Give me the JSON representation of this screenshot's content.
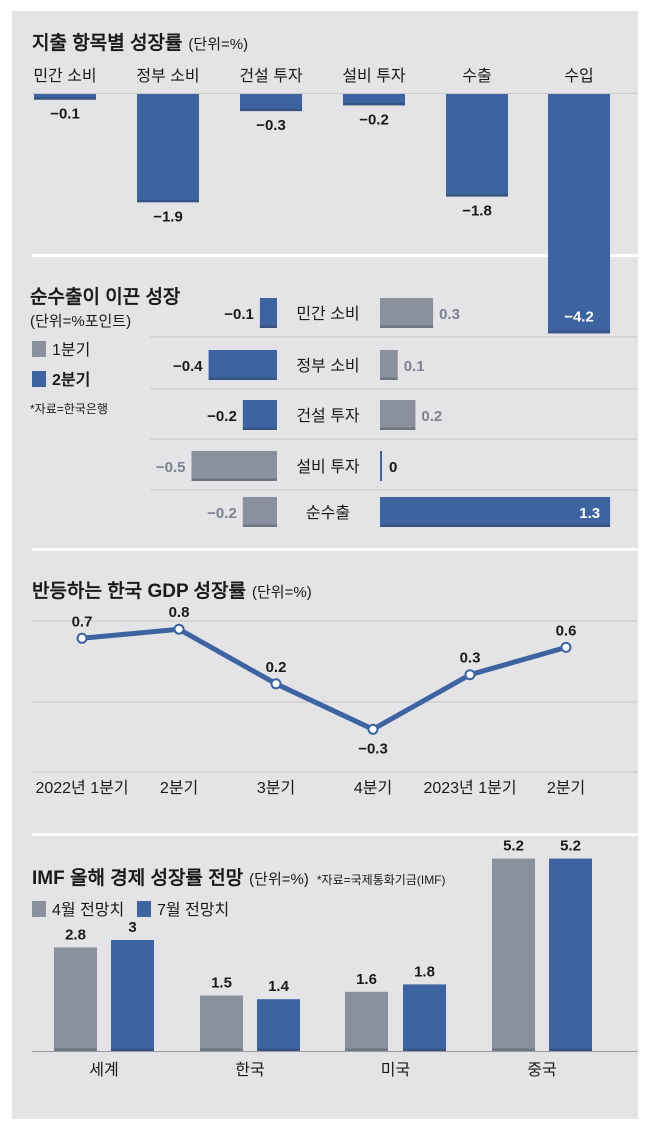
{
  "colors": {
    "blue": "#3e63a1",
    "gray": "#8a909d",
    "panel": "#e4e4e6",
    "divider": "#ffffff",
    "line": "#3e63a1"
  },
  "panel1": {
    "title": "지출 항목별 성장률",
    "unit": "(단위=%)"
  },
  "panel2": {
    "title": "순수출이 이끈 성장",
    "unit": "(단위=%포인트)",
    "legend_q1": "1분기",
    "legend_q2": "2분기",
    "source": "*자료=한국은행"
  },
  "panel3": {
    "title": "반등하는 한국 GDP 성장률",
    "unit": "(단위=%)"
  },
  "panel4": {
    "title": "IMF 올해 경제 성장률 전망",
    "unit": "(단위=%)",
    "source": "*자료=국제통화기금(IMF)",
    "legend_april": "4월 전망치",
    "legend_july": "7월 전망치"
  },
  "chart_data": [
    {
      "type": "bar",
      "title": "지출 항목별 성장률",
      "categories": [
        "민간 소비",
        "정부 소비",
        "건설 투자",
        "설비 투자",
        "수출",
        "수입"
      ],
      "values": [
        -0.1,
        -1.9,
        -0.3,
        -0.2,
        -1.8,
        -4.2
      ],
      "value_labels": [
        "−0.1",
        "−1.9",
        "−0.3",
        "−0.2",
        "−1.8",
        "−4.2"
      ]
    },
    {
      "type": "bar",
      "title": "순수출이 이끈 성장",
      "categories": [
        "민간 소비",
        "정부 소비",
        "건설 투자",
        "설비 투자",
        "순수출"
      ],
      "series": [
        {
          "name": "1분기",
          "values": [
            0.3,
            0.1,
            0.2,
            -0.5,
            -0.2
          ],
          "labels": [
            "0.3",
            "0.1",
            "0.2",
            "−0.5",
            "−0.2"
          ]
        },
        {
          "name": "2분기",
          "values": [
            -0.1,
            -0.4,
            -0.2,
            0,
            1.3
          ],
          "labels": [
            "−0.1",
            "−0.4",
            "−0.2",
            "0",
            "1.3"
          ]
        }
      ]
    },
    {
      "type": "line",
      "title": "반등하는 한국 GDP 성장률",
      "categories": [
        "2022년 1분기",
        "2분기",
        "3분기",
        "4분기",
        "2023년 1분기",
        "2분기"
      ],
      "values": [
        0.7,
        0.8,
        0.2,
        -0.3,
        0.3,
        0.6
      ],
      "value_labels": [
        "0.7",
        "0.8",
        "0.2",
        "−0.3",
        "0.3",
        "0.6"
      ]
    },
    {
      "type": "bar",
      "title": "IMF 올해 경제 성장률 전망",
      "categories": [
        "세계",
        "한국",
        "미국",
        "중국"
      ],
      "series": [
        {
          "name": "4월 전망치",
          "values": [
            2.8,
            1.5,
            1.6,
            5.2
          ],
          "labels": [
            "2.8",
            "1.5",
            "1.6",
            "5.2"
          ]
        },
        {
          "name": "7월 전망치",
          "values": [
            3,
            1.4,
            1.8,
            5.2
          ],
          "labels": [
            "3",
            "1.4",
            "1.8",
            "5.2"
          ]
        }
      ]
    }
  ]
}
